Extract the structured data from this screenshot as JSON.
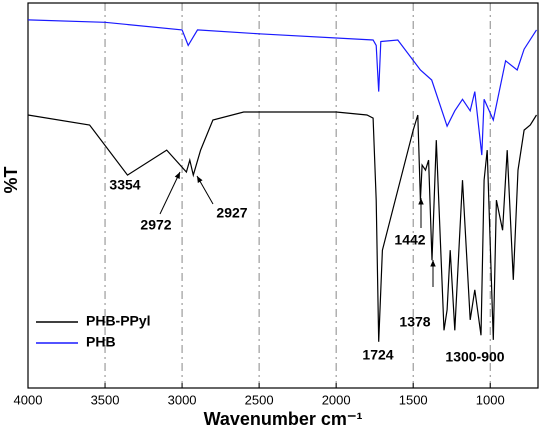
{
  "chart_data": {
    "type": "line",
    "x_label": "Wavenumber cm⁻¹",
    "y_label": "%T",
    "xlim": [
      4000,
      690
    ],
    "xticks": [
      4000,
      3500,
      3000,
      2500,
      2000,
      1500,
      1000
    ],
    "ylim": [
      0,
      100
    ],
    "grid": true,
    "legend": "lower left",
    "series": [
      {
        "name": "PHB-PPyl",
        "color": "#000000",
        "x": [
          4000,
          3600,
          3354,
          3100,
          2972,
          2950,
          2927,
          2880,
          2800,
          2600,
          2000,
          1800,
          1760,
          1740,
          1724,
          1700,
          1650,
          1500,
          1470,
          1453,
          1442,
          1420,
          1400,
          1378,
          1350,
          1300,
          1280,
          1260,
          1230,
          1200,
          1180,
          1130,
          1100,
          1060,
          1040,
          1020,
          980,
          960,
          920,
          890,
          850,
          820,
          780,
          740,
          700
        ],
        "values": [
          70.9,
          68.3,
          55.3,
          61.8,
          56.1,
          59.2,
          55.3,
          61.8,
          69.6,
          71.7,
          71.7,
          70.9,
          70.1,
          48.8,
          12,
          35.8,
          43.6,
          67,
          70.9,
          48.8,
          57.9,
          56.6,
          59.2,
          33.2,
          64.4,
          15,
          20.3,
          35.8,
          15,
          38.4,
          54,
          17.7,
          25.5,
          13.7,
          54,
          61.8,
          12.5,
          48.8,
          41,
          61.8,
          28.1,
          56.6,
          67,
          68.3,
          70.9
        ]
      },
      {
        "name": "PHB",
        "color": "#1a1aff",
        "x": [
          4000,
          3500,
          3000,
          2960,
          2930,
          2900,
          2500,
          1760,
          1740,
          1724,
          1710,
          1600,
          1453,
          1380,
          1280,
          1230,
          1180,
          1130,
          1100,
          1055,
          1040,
          980,
          900,
          825,
          780,
          700
        ],
        "values": [
          95.6,
          95,
          93,
          89,
          91,
          93,
          92,
          90.4,
          89,
          77,
          90,
          90.4,
          82.6,
          80,
          68,
          72,
          75,
          72,
          77,
          60.5,
          75,
          69.6,
          85,
          82.6,
          88,
          93
        ]
      }
    ],
    "annotations": [
      "3354",
      "2972",
      "2927",
      "1442",
      "1378",
      "1724",
      "1300-900"
    ]
  }
}
